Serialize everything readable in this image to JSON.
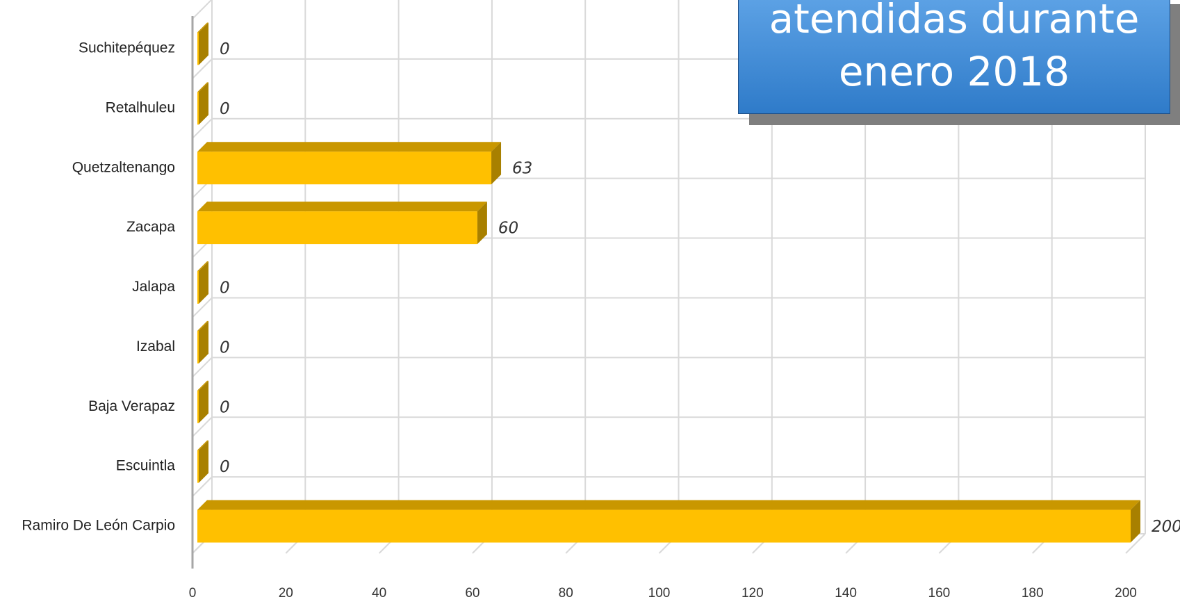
{
  "chart_data": {
    "type": "bar",
    "orientation": "horizontal",
    "title_lines": [
      "atendidas durante",
      "enero 2018"
    ],
    "categories": [
      "Suchitepéquez",
      "Retalhuleu",
      "Quetzaltenango",
      "Zacapa",
      "Jalapa",
      "Izabal",
      "Baja Verapaz",
      "Escuintla",
      "Ramiro De León Carpio"
    ],
    "values": [
      0,
      0,
      63,
      60,
      0,
      0,
      0,
      0,
      200
    ],
    "xlim": [
      0,
      200
    ],
    "xticks": [
      0,
      20,
      40,
      60,
      80,
      100,
      120,
      140,
      160,
      180,
      200
    ],
    "grid": true,
    "colors": {
      "bar_front": "#FFC000",
      "bar_top": "#C99700",
      "bar_side": "#A88000",
      "grid": "#d9d9d9",
      "axis": "#a6a6a6"
    }
  }
}
